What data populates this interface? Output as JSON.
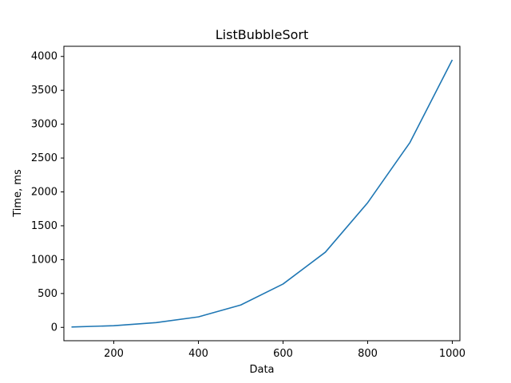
{
  "chart_data": {
    "type": "line",
    "title": "ListBubbleSort",
    "xlabel": "Data",
    "ylabel": "Time, ms",
    "xlim": [
      82,
      1018
    ],
    "ylim": [
      -197,
      4150
    ],
    "xticks": [
      200,
      400,
      600,
      800,
      1000
    ],
    "yticks": [
      0,
      500,
      1000,
      1500,
      2000,
      2500,
      3000,
      3500,
      4000
    ],
    "grid": false,
    "series": [
      {
        "color": "#1f77b4",
        "x": [
          100,
          200,
          300,
          400,
          500,
          600,
          700,
          800,
          900,
          1000
        ],
        "y": [
          5,
          25,
          70,
          155,
          330,
          640,
          1110,
          1840,
          2730,
          3950
        ]
      }
    ]
  }
}
